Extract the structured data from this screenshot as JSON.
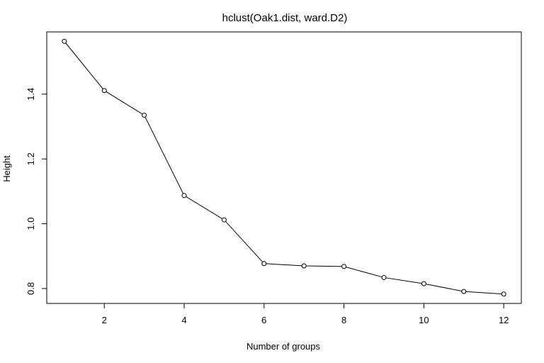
{
  "chart_data": {
    "type": "line",
    "title": "hclust(Oak1.dist, ward.D2)",
    "xlabel": "Number of groups",
    "ylabel": "Height",
    "x": [
      1,
      2,
      3,
      4,
      5,
      6,
      7,
      8,
      9,
      10,
      11,
      12
    ],
    "series": [
      {
        "values": [
          1.563,
          1.411,
          1.335,
          1.087,
          1.012,
          0.877,
          0.87,
          0.868,
          0.834,
          0.815,
          0.791,
          0.783
        ]
      }
    ],
    "xlim": [
      0.56,
      12.44
    ],
    "ylim": [
      0.754,
      1.592
    ],
    "x_ticks": [
      2,
      4,
      6,
      8,
      10,
      12
    ],
    "x_tick_labels": [
      "2",
      "4",
      "6",
      "8",
      "10",
      "12"
    ],
    "y_ticks": [
      0.8,
      1.0,
      1.2,
      1.4
    ],
    "y_tick_labels": [
      "0.8",
      "1.0",
      "1.2",
      "1.4"
    ],
    "grid": false,
    "legend": "none",
    "marker": "open-circle",
    "colors": {
      "line": "#000000",
      "marker_fill": "#ffffff",
      "background": "#ffffff"
    }
  }
}
